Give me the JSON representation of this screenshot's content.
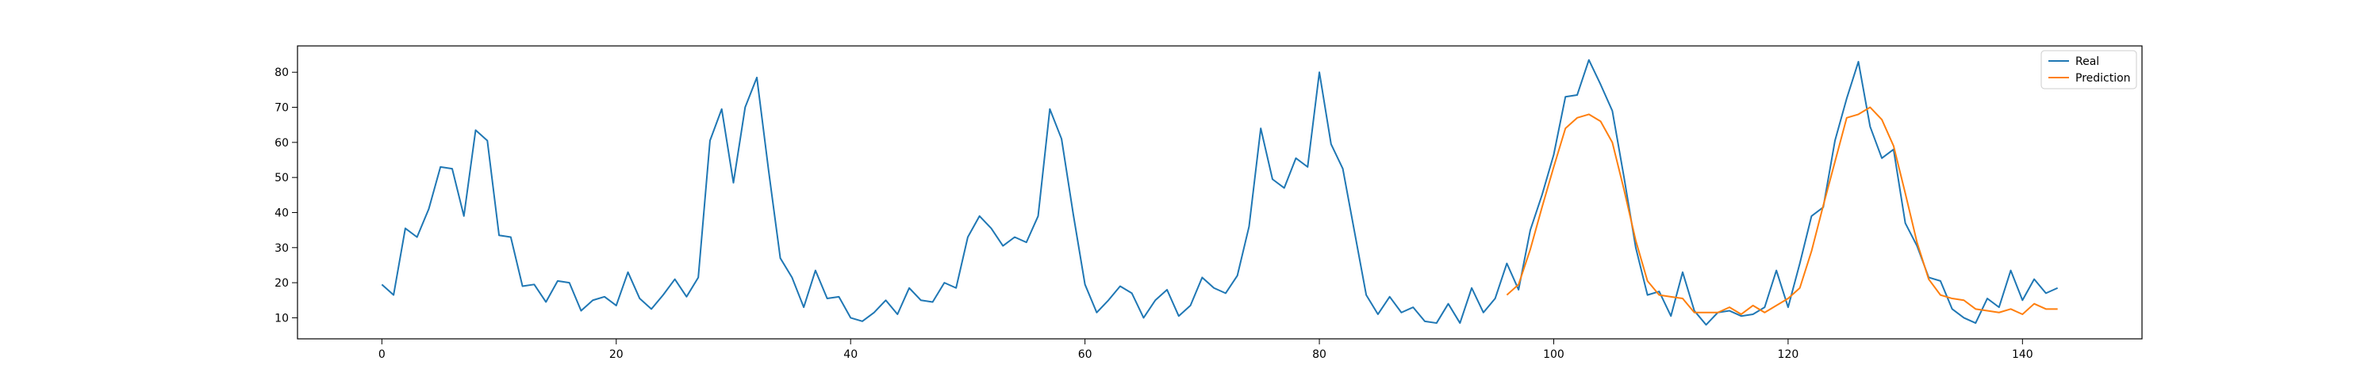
{
  "chart_data": {
    "type": "line",
    "title": "",
    "xlabel": "",
    "ylabel": "",
    "xlim": [
      -7.2,
      150.2
    ],
    "ylim": [
      4.0,
      87.5
    ],
    "x_ticks": [
      0,
      20,
      40,
      60,
      80,
      100,
      120,
      140
    ],
    "y_ticks": [
      10,
      20,
      30,
      40,
      50,
      60,
      70,
      80
    ],
    "grid": false,
    "legend_position": "top-right",
    "series": [
      {
        "name": "Real",
        "color": "#1f77b4",
        "x_start": 0,
        "values": [
          19.5,
          16.5,
          35.5,
          33.0,
          41.0,
          53.0,
          52.5,
          39.0,
          63.5,
          60.5,
          33.5,
          33.0,
          19.0,
          19.5,
          14.5,
          20.5,
          20.0,
          12.0,
          15.0,
          16.0,
          13.5,
          23.0,
          15.5,
          12.5,
          16.5,
          21.0,
          16.0,
          21.5,
          60.5,
          69.5,
          48.5,
          70.0,
          78.5,
          52.0,
          27.0,
          21.5,
          13.0,
          23.5,
          15.5,
          16.0,
          10.0,
          9.0,
          11.5,
          15.0,
          11.0,
          18.5,
          15.0,
          14.5,
          20.0,
          18.5,
          33.0,
          39.0,
          35.5,
          30.5,
          33.0,
          31.5,
          39.0,
          69.5,
          61.0,
          39.5,
          19.5,
          11.5,
          15.0,
          19.0,
          17.0,
          10.0,
          15.0,
          18.0,
          10.5,
          13.5,
          21.5,
          18.5,
          17.0,
          22.0,
          36.0,
          64.0,
          49.5,
          47.0,
          55.5,
          53.0,
          80.0,
          59.5,
          52.5,
          34.5,
          16.5,
          11.0,
          16.0,
          11.5,
          13.0,
          9.0,
          8.5,
          14.0,
          8.5,
          18.5,
          11.5,
          15.5,
          25.5,
          18.0,
          35.0,
          45.0,
          56.5,
          73.0,
          73.5,
          83.5,
          76.5,
          69.0,
          50.0,
          30.0,
          16.5,
          17.5,
          10.5,
          23.0,
          12.0,
          8.0,
          11.5,
          12.0,
          10.5,
          11.0,
          13.0,
          23.5,
          13.0,
          25.5,
          39.0,
          41.5,
          60.5,
          72.5,
          83.0,
          64.5,
          55.5,
          58.0,
          37.0,
          30.5,
          21.5,
          20.5,
          12.5,
          10.0,
          8.5,
          15.5,
          13.0,
          23.5,
          15.0,
          21.0,
          17.0,
          18.5
        ]
      },
      {
        "name": "Prediction",
        "color": "#ff7f0e",
        "x_start": 96,
        "values": [
          16.5,
          19.5,
          29.5,
          41.5,
          53.0,
          64.0,
          67.0,
          68.0,
          66.0,
          60.0,
          46.5,
          32.0,
          20.5,
          16.5,
          16.0,
          15.5,
          11.5,
          11.5,
          11.5,
          13.0,
          11.0,
          13.5,
          11.5,
          13.5,
          15.5,
          18.5,
          29.0,
          42.0,
          54.5,
          67.0,
          68.0,
          70.0,
          66.5,
          59.0,
          45.5,
          31.5,
          21.0,
          16.5,
          15.5,
          15.0,
          12.5,
          12.0,
          11.5,
          12.5,
          11.0,
          14.0,
          12.5,
          12.5
        ]
      }
    ]
  }
}
